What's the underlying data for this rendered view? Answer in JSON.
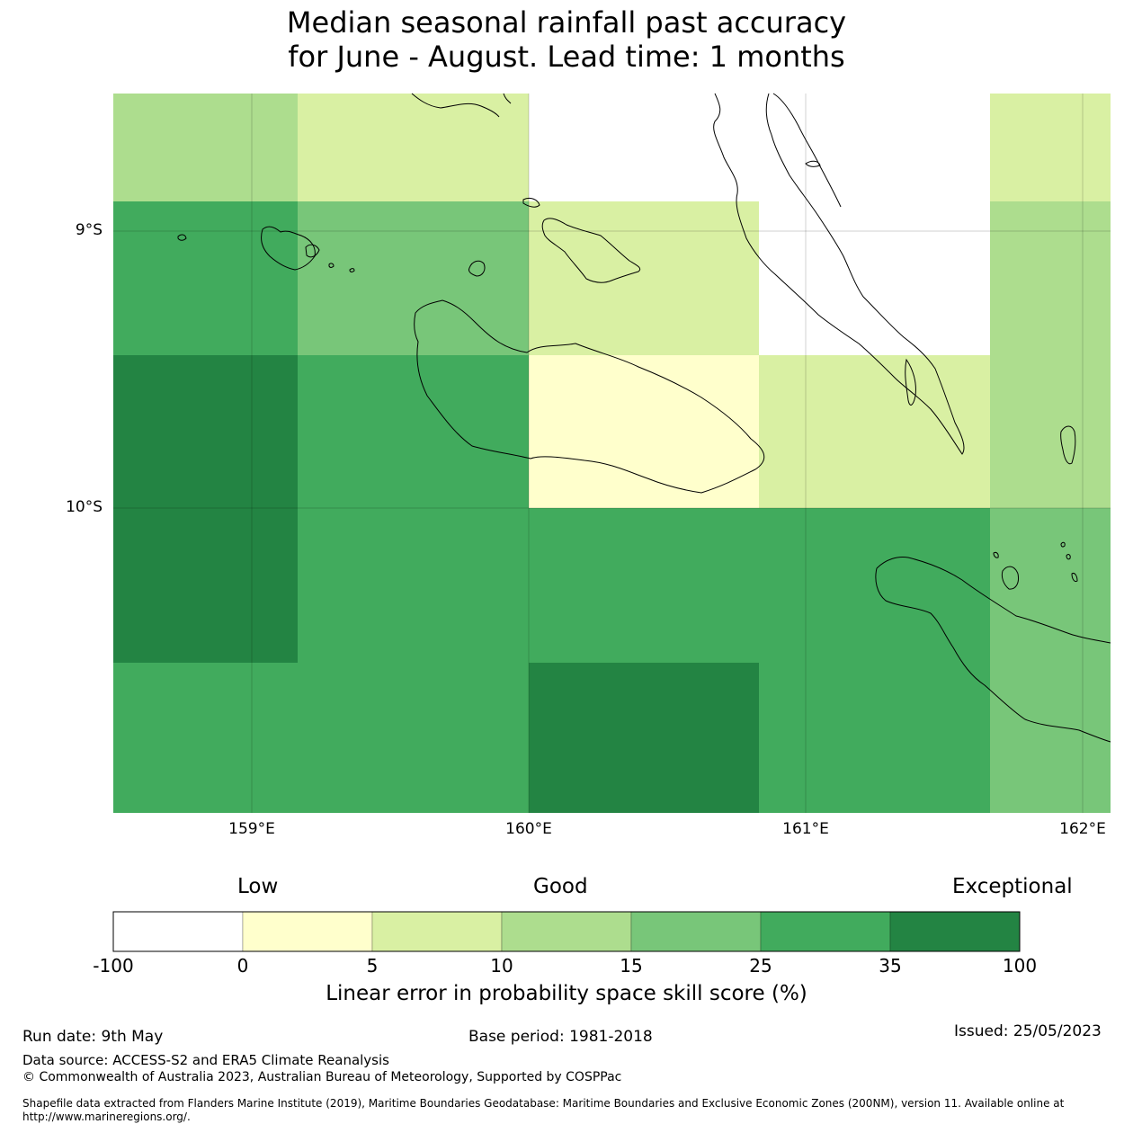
{
  "title": {
    "line1": "Median seasonal rainfall past accuracy",
    "line2": "for June - August. Lead time: 1 months"
  },
  "map": {
    "lat_labels": [
      "9°S",
      "10°S"
    ],
    "lon_labels": [
      "159°E",
      "160°E",
      "161°E",
      "162°E"
    ],
    "grid_cells": [
      {
        "row": 0,
        "col": 0,
        "category": 3
      },
      {
        "row": 0,
        "col": 1,
        "category": 2
      },
      {
        "row": 0,
        "col": 2,
        "category": 0
      },
      {
        "row": 0,
        "col": 3,
        "category": 0
      },
      {
        "row": 0,
        "col": 4,
        "category": 2
      },
      {
        "row": 1,
        "col": 0,
        "category": 5
      },
      {
        "row": 1,
        "col": 1,
        "category": 4
      },
      {
        "row": 1,
        "col": 2,
        "category": 2
      },
      {
        "row": 1,
        "col": 3,
        "category": 0
      },
      {
        "row": 1,
        "col": 4,
        "category": 3
      },
      {
        "row": 2,
        "col": 0,
        "category": 6
      },
      {
        "row": 2,
        "col": 1,
        "category": 5
      },
      {
        "row": 2,
        "col": 2,
        "category": 1
      },
      {
        "row": 2,
        "col": 3,
        "category": 2
      },
      {
        "row": 2,
        "col": 4,
        "category": 3
      },
      {
        "row": 3,
        "col": 0,
        "category": 6
      },
      {
        "row": 3,
        "col": 1,
        "category": 5
      },
      {
        "row": 3,
        "col": 2,
        "category": 5
      },
      {
        "row": 3,
        "col": 3,
        "category": 5
      },
      {
        "row": 3,
        "col": 4,
        "category": 4
      },
      {
        "row": 4,
        "col": 0,
        "category": 5
      },
      {
        "row": 4,
        "col": 1,
        "category": 5
      },
      {
        "row": 4,
        "col": 2,
        "category": 6
      },
      {
        "row": 4,
        "col": 3,
        "category": 5
      },
      {
        "row": 4,
        "col": 4,
        "category": 4
      }
    ]
  },
  "legend": {
    "categories": [
      "Low",
      "Good",
      "Exceptional"
    ],
    "colors": [
      "#ffffff",
      "#ffffcc",
      "#d9f0a3",
      "#addd8e",
      "#78c679",
      "#41ab5d",
      "#238443"
    ],
    "ticks": [
      "-100",
      "0",
      "5",
      "10",
      "15",
      "25",
      "35",
      "100"
    ],
    "title": "Linear error in probability space skill score (%)"
  },
  "footer": {
    "run_date": "Run date: 9th May",
    "base_period": "Base period: 1981-2018",
    "issued": "Issued: 25/05/2023",
    "data_source": "Data source: ACCESS-S2 and ERA5 Climate Reanalysis",
    "copyright": "© Commonwealth of Australia 2023, Australian Bureau of Meteorology, Supported by COSPPac",
    "shapefile_line1": "Shapefile data extracted from Flanders Marine Institute (2019), Maritime Boundaries Geodatabase: Maritime Boundaries and Exclusive Economic Zones (200NM), version 11. Available online at",
    "shapefile_line2": "http://www.marineregions.org/."
  }
}
